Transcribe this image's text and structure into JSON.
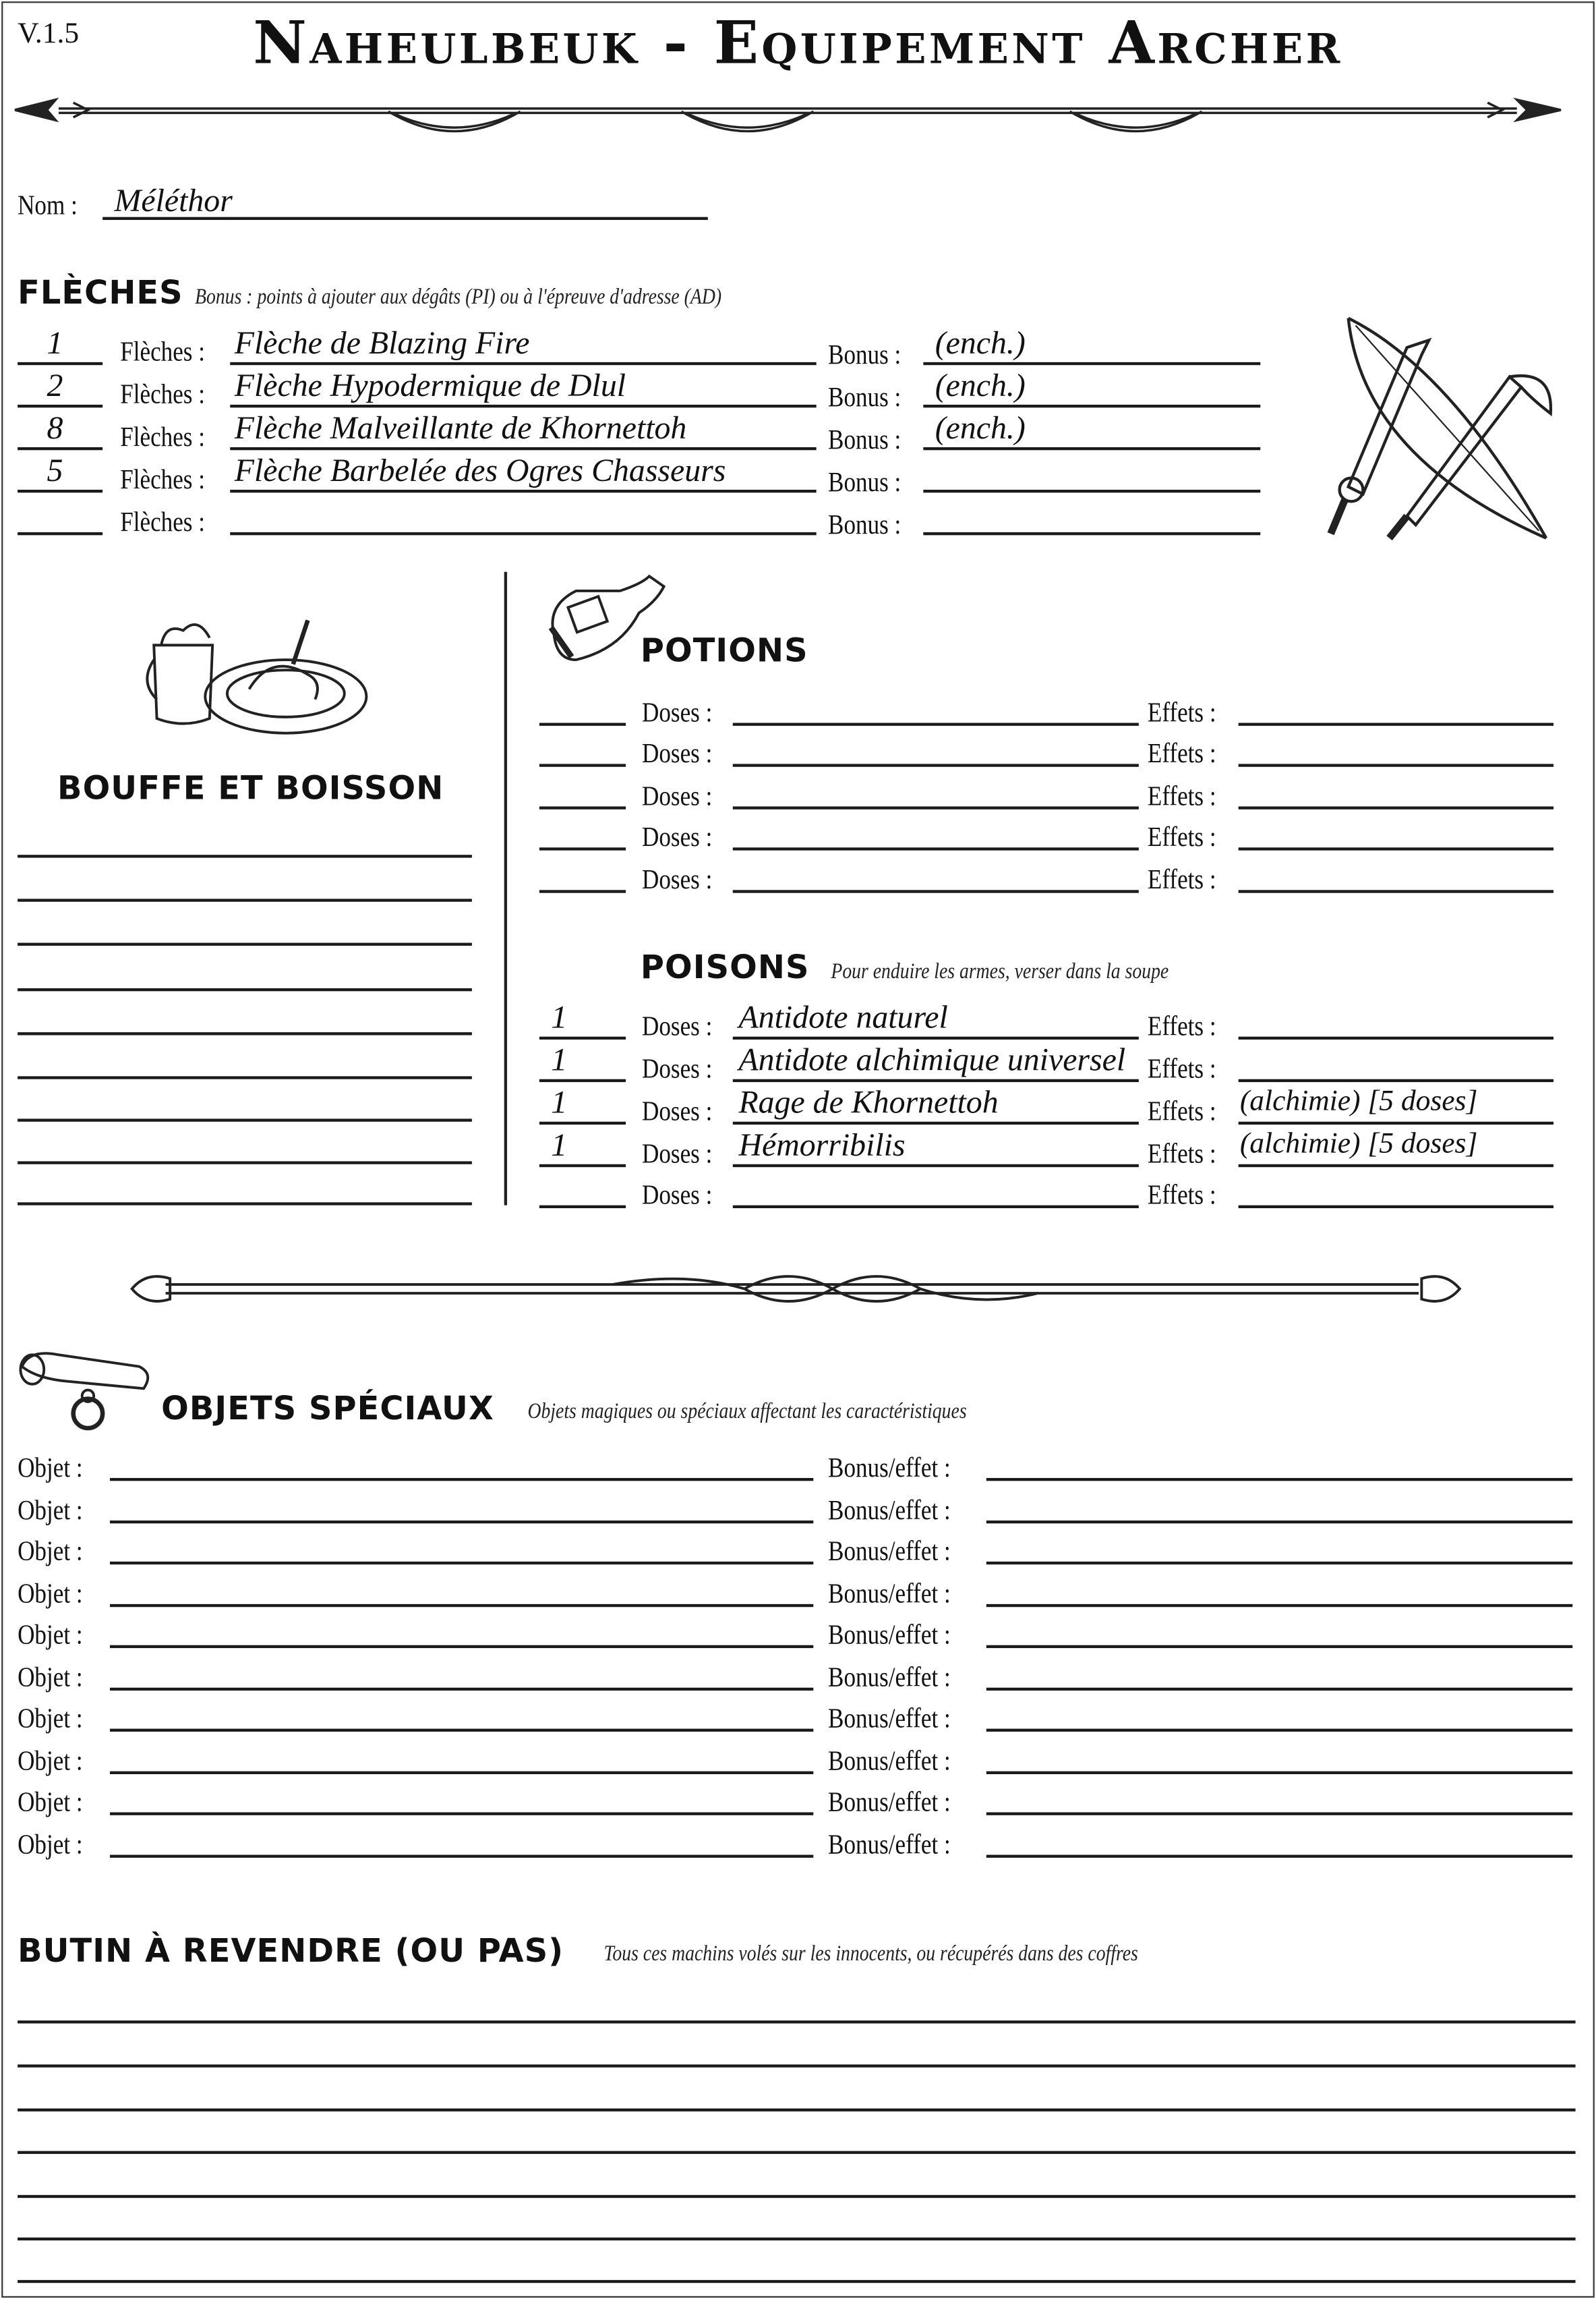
{
  "version": "V.1.5",
  "title": "Naheulbeuk - Equipement Archer",
  "nom": {
    "label": "Nom :",
    "value": "Méléthor"
  },
  "fleches": {
    "heading": "FLÈCHES",
    "subtitle": "Bonus : points à ajouter aux dégâts (PI) ou à l'épreuve d'adresse (AD)",
    "qty_label": "Flèches :",
    "bonus_label": "Bonus :",
    "rows": [
      {
        "qty": "1",
        "name": "Flèche de Blazing Fire",
        "bonus": "(ench.)"
      },
      {
        "qty": "2",
        "name": "Flèche Hypodermique de Dlul",
        "bonus": "(ench.)"
      },
      {
        "qty": "8",
        "name": "Flèche Malveillante de Khornettoh",
        "bonus": "(ench.)"
      },
      {
        "qty": "5",
        "name": "Flèche Barbelée des Ogres Chasseurs",
        "bonus": ""
      },
      {
        "qty": "",
        "name": "",
        "bonus": ""
      }
    ]
  },
  "bouffe": {
    "heading": "BOUFFE ET BOISSON",
    "lines": [
      "",
      "",
      "",
      "",
      "",
      "",
      "",
      "",
      ""
    ]
  },
  "potions": {
    "heading": "POTIONS",
    "doses_label": "Doses :",
    "effets_label": "Effets :",
    "rows": [
      {
        "qty": "",
        "name": "",
        "effect": ""
      },
      {
        "qty": "",
        "name": "",
        "effect": ""
      },
      {
        "qty": "",
        "name": "",
        "effect": ""
      },
      {
        "qty": "",
        "name": "",
        "effect": ""
      },
      {
        "qty": "",
        "name": "",
        "effect": ""
      }
    ]
  },
  "poisons": {
    "heading": "POISONS",
    "subtitle": "Pour enduire les armes, verser dans la soupe",
    "doses_label": "Doses :",
    "effets_label": "Effets :",
    "rows": [
      {
        "qty": "1",
        "name": "Antidote naturel",
        "effect": ""
      },
      {
        "qty": "1",
        "name": "Antidote alchimique universel",
        "effect": ""
      },
      {
        "qty": "1",
        "name": "Rage de Khornettoh",
        "effect": "(alchimie) [5 doses]"
      },
      {
        "qty": "1",
        "name": "Hémorribilis",
        "effect": "(alchimie) [5 doses]"
      },
      {
        "qty": "",
        "name": "",
        "effect": ""
      }
    ]
  },
  "objets": {
    "heading": "OBJETS SPÉCIAUX",
    "subtitle": "Objets magiques ou spéciaux affectant les caractéristiques",
    "objet_label": "Objet :",
    "bonus_label": "Bonus/effet :",
    "rows": [
      {
        "name": "",
        "bonus": ""
      },
      {
        "name": "",
        "bonus": ""
      },
      {
        "name": "",
        "bonus": ""
      },
      {
        "name": "",
        "bonus": ""
      },
      {
        "name": "",
        "bonus": ""
      },
      {
        "name": "",
        "bonus": ""
      },
      {
        "name": "",
        "bonus": ""
      },
      {
        "name": "",
        "bonus": ""
      },
      {
        "name": "",
        "bonus": ""
      },
      {
        "name": "",
        "bonus": ""
      }
    ]
  },
  "butin": {
    "heading": "BUTIN À REVENDRE (OU PAS)",
    "subtitle": "Tous ces machins volés sur les innocents, ou récupérés dans des coffres",
    "lines": [
      "",
      "",
      "",
      "",
      "",
      "",
      ""
    ]
  },
  "icons": [
    "arrow-divider",
    "crossed-weapons",
    "mug-and-plate",
    "potion-bottle",
    "staff-divider",
    "scroll-and-ring"
  ]
}
